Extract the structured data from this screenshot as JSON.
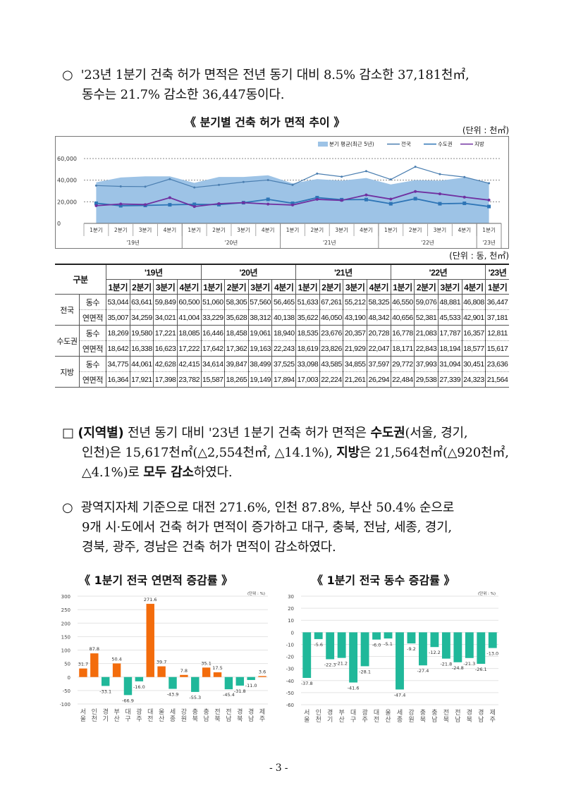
{
  "intro": {
    "bullet": "○",
    "line1": "'23년 1분기 건축 허가 면적은 전년 동기 대비 8.5% 감소한 37,181천㎡,",
    "line2": "동수는 21.7% 감소한 36,447동이다."
  },
  "trend_chart": {
    "title": "《 분기별 건축 허가 면적 추이 》",
    "unit": "(단위 : 천㎡)"
  },
  "table_unit": "(단위 : 동, 천㎡)",
  "table": {
    "corner": "구분",
    "years": [
      "'19년",
      "'20년",
      "'21년",
      "'22년",
      "'23년"
    ],
    "quarters": [
      "1분기",
      "2분기",
      "3분기",
      "4분기",
      "1분기",
      "2분기",
      "3분기",
      "4분기",
      "1분기",
      "2분기",
      "3분기",
      "4분기",
      "1분기",
      "2분기",
      "3분기",
      "4분기",
      "1분기"
    ],
    "groups": [
      {
        "name": "전국",
        "rows": [
          {
            "label": "동수",
            "values": [
              "53,044",
              "63,641",
              "59,849",
              "60,500",
              "51,060",
              "58,305",
              "57,560",
              "56,465",
              "51,633",
              "67,261",
              "55,212",
              "58,325",
              "46,550",
              "59,076",
              "48,881",
              "46,808",
              "36,447"
            ]
          },
          {
            "label": "연면적",
            "values": [
              "35,007",
              "34,259",
              "34,021",
              "41,004",
              "33,229",
              "35,628",
              "38,312",
              "40,138",
              "35,622",
              "46,050",
              "43,190",
              "48,342",
              "40,656",
              "52,381",
              "45,533",
              "42,901",
              "37,181"
            ]
          }
        ]
      },
      {
        "name": "수도권",
        "rows": [
          {
            "label": "동수",
            "values": [
              "18,269",
              "19,580",
              "17,221",
              "18,085",
              "16,446",
              "18,458",
              "19,061",
              "18,940",
              "18,535",
              "23,676",
              "20,357",
              "20,728",
              "16,778",
              "21,083",
              "17,787",
              "16,357",
              "12,811"
            ]
          },
          {
            "label": "연면적",
            "values": [
              "18,642",
              "16,338",
              "16,623",
              "17,222",
              "17,642",
              "17,362",
              "19,163",
              "22,243",
              "18,619",
              "23,826",
              "21,929",
              "22,047",
              "18,171",
              "22,843",
              "18,194",
              "18,577",
              "15,617"
            ]
          }
        ]
      },
      {
        "name": "지방",
        "rows": [
          {
            "label": "동수",
            "values": [
              "34,775",
              "44,061",
              "42,628",
              "42,415",
              "34,614",
              "39,847",
              "38,499",
              "37,525",
              "33,098",
              "43,585",
              "34,855",
              "37,597",
              "29,772",
              "37,993",
              "31,094",
              "30,451",
              "23,636"
            ]
          },
          {
            "label": "연면적",
            "values": [
              "16,364",
              "17,921",
              "17,398",
              "23,782",
              "15,587",
              "18,265",
              "19,149",
              "17,894",
              "17,003",
              "22,224",
              "21,261",
              "26,294",
              "22,484",
              "29,538",
              "27,339",
              "24,323",
              "21,564"
            ]
          }
        ]
      }
    ]
  },
  "region": {
    "bullet": "□",
    "head": "(지역별)",
    "l1a": " 전년 동기 대비 '23년 1분기 건축 허가 면적은 ",
    "l1b": "수도권",
    "l1c": "(서울, 경기,",
    "l2a": "인천)은 15,617천㎡(△2,554천㎡, △14.1%), ",
    "l2b": "지방",
    "l2c": "은 21,564천㎡(△920천㎡,",
    "l3a": "△4.1%)로 ",
    "l3b": "모두 감소",
    "l3c": "하였다."
  },
  "detail": {
    "bullet": "○",
    "line1": "광역지자체 기준으로 대전 271.6%, 인천 87.8%, 부산 50.4% 순으로",
    "line2": "9개 시·도에서 건축 허가 면적이 증가하고 대구, 충북, 전남, 세종, 경기,",
    "line3": "경북, 광주, 경남은 건축 허가 면적이 감소하였다."
  },
  "page_number": "- 3 -",
  "colors": {
    "avg_area": "#9dc3e6",
    "national": "#4a7eb0",
    "capital": "#2e75b6",
    "regional": "#7030a0",
    "increase": "#f36c0c",
    "decrease": "#20b89a"
  },
  "chart_data": [
    {
      "type": "line",
      "title": "《 분기별 건축 허가 면적 추이 》",
      "unit": "(단위 : 천㎡)",
      "ylim": [
        0,
        60000
      ],
      "yticks": [
        "0",
        "20,000",
        "40,000",
        "60,000"
      ],
      "grid": true,
      "legend": "top-right",
      "categories": [
        "1분기",
        "2분기",
        "3분기",
        "4분기",
        "1분기",
        "2분기",
        "3분기",
        "4분기",
        "1분기",
        "2분기",
        "3분기",
        "4분기",
        "1분기",
        "2분기",
        "3분기",
        "4분기",
        "1분기"
      ],
      "year_groups": [
        {
          "label": "'19년",
          "span": 4
        },
        {
          "label": "'20년",
          "span": 4
        },
        {
          "label": "'21년",
          "span": 4
        },
        {
          "label": "'22년",
          "span": 4
        },
        {
          "label": "'23년",
          "span": 1
        }
      ],
      "series": [
        {
          "name": "분기 평균(최근 5년)",
          "kind": "area",
          "values": [
            38000,
            42500,
            43500,
            43500,
            37500,
            43000,
            43000,
            44500,
            37000,
            41000,
            39500,
            42000,
            36000,
            40000,
            39500,
            42500,
            37500
          ]
        },
        {
          "name": "전국",
          "kind": "line",
          "values": [
            35007,
            34259,
            34021,
            41004,
            33229,
            35628,
            38312,
            40138,
            35622,
            46050,
            43190,
            48342,
            40656,
            52381,
            45533,
            42901,
            37181
          ]
        },
        {
          "name": "수도권",
          "kind": "line",
          "values": [
            18642,
            16338,
            16623,
            17222,
            17642,
            17362,
            19163,
            22243,
            18619,
            23826,
            21929,
            22047,
            18171,
            22843,
            18194,
            18577,
            15617
          ]
        },
        {
          "name": "지방",
          "kind": "line",
          "values": [
            16364,
            17921,
            17398,
            23782,
            15587,
            18265,
            19149,
            17894,
            17003,
            22224,
            21261,
            26294,
            22484,
            29538,
            27339,
            24323,
            21564
          ]
        }
      ]
    },
    {
      "type": "bar",
      "title": "《 1분기 전국 연면적 증감률 》",
      "unit": "(단위 : %)",
      "ylim": [
        -100,
        300
      ],
      "yticks": [
        -100,
        -50,
        0,
        50,
        100,
        150,
        200,
        250,
        300
      ],
      "categories": [
        "서울",
        "인천",
        "경기",
        "부산",
        "대구",
        "광주",
        "대전",
        "울산",
        "세종",
        "강원",
        "충북",
        "충남",
        "전북",
        "전남",
        "경북",
        "경남",
        "제주"
      ],
      "values": [
        31.7,
        87.8,
        -33.1,
        50.4,
        -66.9,
        -16.0,
        271.6,
        39.7,
        -43.9,
        7.8,
        -55.3,
        35.1,
        17.5,
        -45.4,
        -31.8,
        -11.0,
        3.6
      ]
    },
    {
      "type": "bar",
      "title": "《 1분기 전국 동수 증감률 》",
      "unit": "(단위 : %)",
      "ylim": [
        -60,
        30
      ],
      "yticks": [
        -60,
        -50,
        -40,
        -30,
        -20,
        -10,
        0,
        10,
        20,
        30
      ],
      "categories": [
        "서울",
        "인천",
        "경기",
        "부산",
        "대구",
        "광주",
        "대전",
        "울산",
        "세종",
        "강원",
        "충북",
        "충남",
        "전북",
        "전남",
        "경북",
        "경남",
        "제주"
      ],
      "values": [
        -37.8,
        -5.6,
        -22.3,
        -21.2,
        -41.6,
        -28.1,
        -6.0,
        -5.1,
        -47.4,
        -9.2,
        -27.4,
        -12.2,
        -21.8,
        -24.8,
        -21.3,
        -26.1,
        -13.0
      ]
    }
  ]
}
